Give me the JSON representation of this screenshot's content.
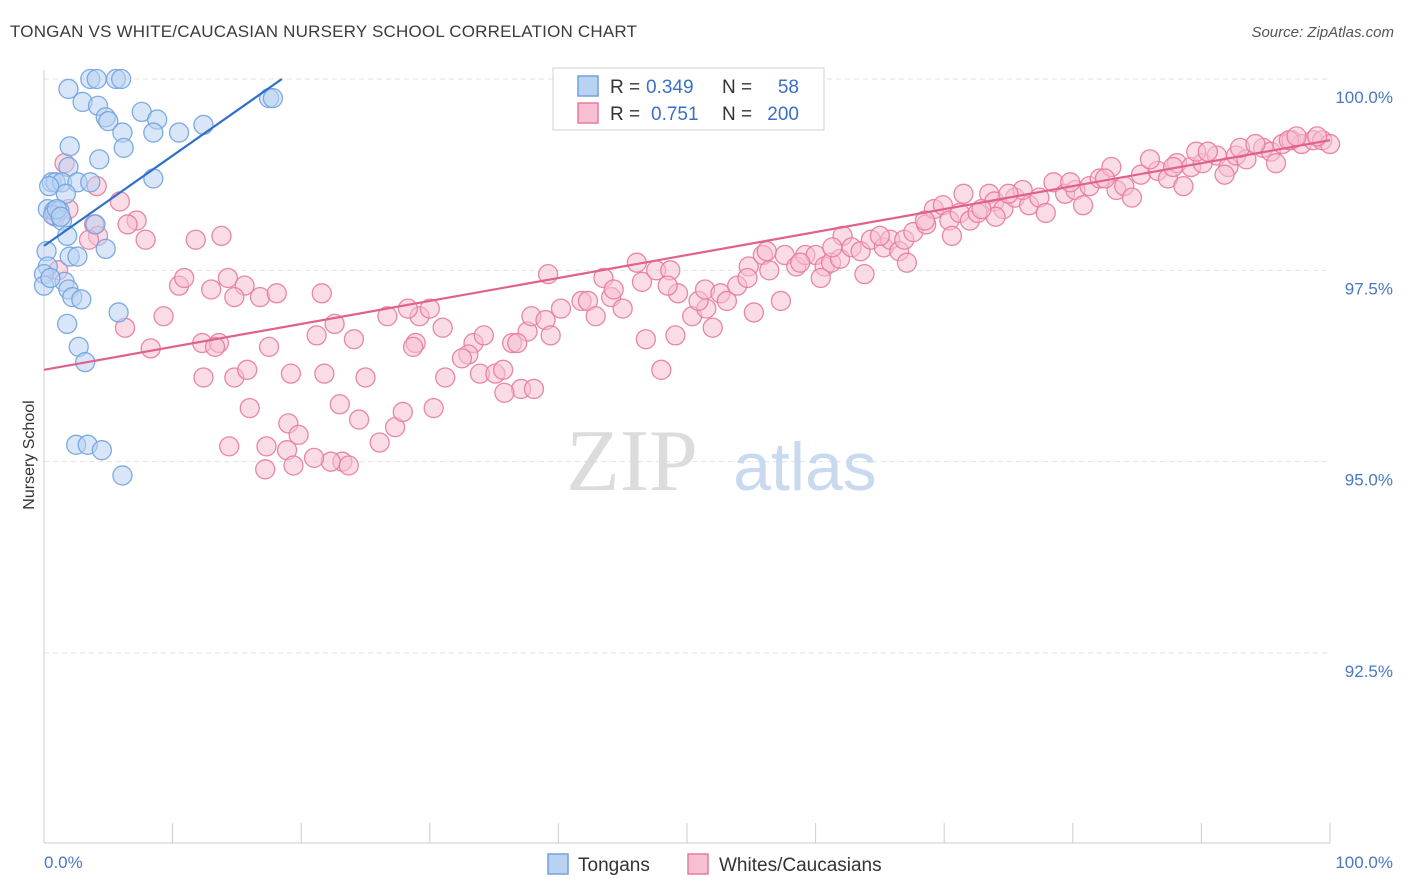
{
  "title": "TONGAN VS WHITE/CAUCASIAN NURSERY SCHOOL CORRELATION CHART",
  "source": "Source: ZipAtlas.com",
  "watermark": {
    "zip": "ZIP",
    "atlas": "atlas"
  },
  "colors": {
    "blue": "#6fa3e0",
    "blue_fill": "#b9d2f2",
    "blue_line": "#2f6fcc",
    "pink": "#e87aa0",
    "pink_fill": "#f6c0d2",
    "pink_line": "#e0618e",
    "tick_text": "#4a78c2",
    "grid": "#e2e2e2"
  },
  "legend": {
    "tongans": {
      "r_label": "R =",
      "r_value": "0.349",
      "n_label": "N =",
      "n_value": "58"
    },
    "whites": {
      "r_label": "R =",
      "r_value": "0.751",
      "n_label": "N =",
      "n_value": "200"
    }
  },
  "bottom_legend": {
    "tongans": "Tongans",
    "whites": "Whites/Caucasians"
  },
  "chart_data": {
    "type": "scatter",
    "ylabel": "Nursery School",
    "xlim": [
      0,
      100
    ],
    "ylim": [
      90.5,
      100.4
    ],
    "x_tick_labels": {
      "left": "0.0%",
      "right": "100.0%"
    },
    "y_ticks": [
      {
        "value": 100.0,
        "label": "100.0%"
      },
      {
        "value": 97.5,
        "label": "97.5%"
      },
      {
        "value": 95.0,
        "label": "95.0%"
      },
      {
        "value": 92.5,
        "label": "92.5%"
      }
    ],
    "series": [
      {
        "name": "Tongans",
        "r": 0.349,
        "n": 58,
        "trend": [
          [
            0,
            97.82
          ],
          [
            18.5,
            100.0
          ]
        ],
        "points": [
          [
            3.6,
            100
          ],
          [
            4.1,
            100
          ],
          [
            5.6,
            100
          ],
          [
            6.0,
            100
          ],
          [
            1.9,
            99.87
          ],
          [
            3.0,
            99.7
          ],
          [
            4.2,
            99.65
          ],
          [
            17.5,
            99.75
          ],
          [
            17.8,
            99.75
          ],
          [
            7.6,
            99.57
          ],
          [
            4.8,
            99.5
          ],
          [
            5.0,
            99.45
          ],
          [
            8.8,
            99.47
          ],
          [
            12.4,
            99.4
          ],
          [
            6.1,
            99.3
          ],
          [
            8.5,
            99.3
          ],
          [
            10.5,
            99.3
          ],
          [
            2.0,
            99.12
          ],
          [
            6.2,
            99.1
          ],
          [
            4.3,
            98.95
          ],
          [
            1.9,
            98.85
          ],
          [
            0.6,
            98.65
          ],
          [
            0.9,
            98.65
          ],
          [
            1.4,
            98.65
          ],
          [
            2.6,
            98.65
          ],
          [
            3.6,
            98.65
          ],
          [
            8.5,
            98.7
          ],
          [
            1.7,
            98.5
          ],
          [
            0.3,
            98.3
          ],
          [
            0.8,
            98.28
          ],
          [
            1.2,
            98.28
          ],
          [
            0.7,
            98.22
          ],
          [
            1.4,
            98.15
          ],
          [
            4.0,
            98.1
          ],
          [
            1.8,
            97.95
          ],
          [
            4.8,
            97.78
          ],
          [
            0.2,
            97.75
          ],
          [
            0.3,
            97.55
          ],
          [
            2.0,
            97.68
          ],
          [
            2.6,
            97.68
          ],
          [
            0.0,
            97.45
          ],
          [
            1.6,
            97.35
          ],
          [
            1.9,
            97.25
          ],
          [
            2.2,
            97.15
          ],
          [
            2.9,
            97.12
          ],
          [
            5.8,
            96.95
          ],
          [
            1.8,
            96.8
          ],
          [
            2.7,
            96.5
          ],
          [
            3.2,
            96.3
          ],
          [
            2.5,
            95.22
          ],
          [
            3.4,
            95.22
          ],
          [
            4.5,
            95.15
          ],
          [
            6.1,
            94.82
          ],
          [
            0.0,
            97.3
          ],
          [
            0.5,
            97.4
          ],
          [
            1.0,
            98.3
          ],
          [
            1.3,
            98.2
          ],
          [
            0.4,
            98.6
          ]
        ]
      },
      {
        "name": "Whites/Caucasians",
        "r": 0.751,
        "n": 200,
        "trend": [
          [
            0,
            96.2
          ],
          [
            100,
            99.2
          ]
        ],
        "points": [
          [
            1.6,
            98.9
          ],
          [
            4.1,
            98.6
          ],
          [
            5.9,
            98.4
          ],
          [
            1.9,
            98.3
          ],
          [
            0.9,
            98.2
          ],
          [
            3.9,
            98.1
          ],
          [
            7.2,
            98.15
          ],
          [
            6.5,
            98.1
          ],
          [
            4.2,
            97.95
          ],
          [
            3.5,
            97.9
          ],
          [
            7.9,
            97.9
          ],
          [
            11.8,
            97.9
          ],
          [
            1.1,
            97.5
          ],
          [
            10.5,
            97.3
          ],
          [
            10.9,
            97.4
          ],
          [
            14.3,
            97.4
          ],
          [
            15.6,
            97.3
          ],
          [
            14.8,
            97.15
          ],
          [
            16.8,
            97.15
          ],
          [
            18.1,
            97.2
          ],
          [
            21.6,
            97.2
          ],
          [
            9.3,
            96.9
          ],
          [
            6.3,
            96.75
          ],
          [
            12.3,
            96.55
          ],
          [
            13.6,
            96.55
          ],
          [
            8.3,
            96.48
          ],
          [
            13.3,
            96.5
          ],
          [
            17.5,
            96.5
          ],
          [
            22.6,
            96.8
          ],
          [
            21.2,
            96.65
          ],
          [
            24.1,
            96.6
          ],
          [
            26.7,
            96.9
          ],
          [
            28.9,
            96.55
          ],
          [
            29.2,
            96.9
          ],
          [
            28.3,
            97.0
          ],
          [
            30.0,
            97.0
          ],
          [
            28.7,
            96.5
          ],
          [
            31.0,
            96.75
          ],
          [
            33.4,
            96.55
          ],
          [
            33.0,
            96.4
          ],
          [
            34.2,
            96.65
          ],
          [
            33.9,
            96.15
          ],
          [
            35.1,
            96.15
          ],
          [
            35.7,
            96.2
          ],
          [
            14.8,
            96.1
          ],
          [
            15.8,
            96.2
          ],
          [
            16.0,
            95.7
          ],
          [
            19.2,
            96.15
          ],
          [
            21.8,
            96.15
          ],
          [
            17.3,
            95.2
          ],
          [
            19.0,
            95.5
          ],
          [
            19.8,
            95.35
          ],
          [
            23.0,
            95.75
          ],
          [
            23.2,
            95.0
          ],
          [
            24.5,
            95.55
          ],
          [
            26.1,
            95.25
          ],
          [
            27.3,
            95.45
          ],
          [
            27.9,
            95.65
          ],
          [
            30.3,
            95.7
          ],
          [
            14.4,
            95.2
          ],
          [
            18.9,
            95.15
          ],
          [
            22.3,
            95.0
          ],
          [
            17.2,
            94.9
          ],
          [
            19.4,
            94.95
          ],
          [
            21.0,
            95.05
          ],
          [
            23.7,
            94.95
          ],
          [
            13.8,
            97.95
          ],
          [
            13.0,
            97.25
          ],
          [
            12.4,
            96.1
          ],
          [
            25.0,
            96.1
          ],
          [
            31.2,
            96.1
          ],
          [
            32.5,
            96.35
          ],
          [
            36.4,
            96.55
          ],
          [
            37.1,
            95.95
          ],
          [
            38.1,
            95.95
          ],
          [
            35.8,
            95.9
          ],
          [
            37.6,
            96.7
          ],
          [
            37.9,
            96.9
          ],
          [
            39.0,
            96.85
          ],
          [
            39.4,
            96.65
          ],
          [
            40.2,
            97.0
          ],
          [
            41.8,
            97.1
          ],
          [
            42.3,
            97.1
          ],
          [
            42.9,
            96.9
          ],
          [
            44.1,
            97.15
          ],
          [
            45.0,
            97.0
          ],
          [
            39.2,
            97.45
          ],
          [
            43.5,
            97.4
          ],
          [
            44.3,
            97.25
          ],
          [
            46.5,
            97.35
          ],
          [
            47.6,
            97.5
          ],
          [
            48.7,
            97.5
          ],
          [
            46.1,
            97.6
          ],
          [
            49.3,
            97.2
          ],
          [
            50.4,
            96.9
          ],
          [
            51.5,
            97.0
          ],
          [
            49.1,
            96.65
          ],
          [
            48.0,
            96.2
          ],
          [
            50.9,
            97.1
          ],
          [
            51.4,
            97.25
          ],
          [
            52.6,
            97.2
          ],
          [
            53.1,
            97.1
          ],
          [
            53.9,
            97.3
          ],
          [
            54.8,
            97.55
          ],
          [
            55.9,
            97.7
          ],
          [
            56.4,
            97.5
          ],
          [
            57.6,
            97.7
          ],
          [
            58.5,
            97.55
          ],
          [
            59.2,
            97.7
          ],
          [
            60.0,
            97.7
          ],
          [
            60.7,
            97.55
          ],
          [
            61.2,
            97.6
          ],
          [
            61.9,
            97.65
          ],
          [
            62.1,
            97.95
          ],
          [
            62.8,
            97.8
          ],
          [
            63.5,
            97.75
          ],
          [
            64.3,
            97.9
          ],
          [
            65.3,
            97.8
          ],
          [
            65.8,
            97.9
          ],
          [
            66.5,
            97.75
          ],
          [
            66.9,
            97.9
          ],
          [
            67.6,
            98.0
          ],
          [
            68.6,
            98.1
          ],
          [
            69.2,
            98.3
          ],
          [
            69.9,
            98.35
          ],
          [
            70.4,
            98.15
          ],
          [
            71.2,
            98.25
          ],
          [
            72.0,
            98.15
          ],
          [
            72.6,
            98.25
          ],
          [
            73.5,
            98.5
          ],
          [
            73.9,
            98.4
          ],
          [
            74.6,
            98.3
          ],
          [
            75.5,
            98.45
          ],
          [
            76.6,
            98.35
          ],
          [
            77.4,
            98.45
          ],
          [
            78.5,
            98.65
          ],
          [
            79.4,
            98.5
          ],
          [
            80.2,
            98.55
          ],
          [
            81.3,
            98.6
          ],
          [
            82.1,
            98.7
          ],
          [
            83.4,
            98.55
          ],
          [
            84.0,
            98.6
          ],
          [
            85.3,
            98.75
          ],
          [
            86.6,
            98.8
          ],
          [
            87.4,
            98.7
          ],
          [
            88.1,
            98.9
          ],
          [
            89.2,
            98.85
          ],
          [
            90.1,
            98.9
          ],
          [
            91.2,
            99.0
          ],
          [
            92.1,
            98.85
          ],
          [
            92.7,
            99.0
          ],
          [
            93.5,
            98.95
          ],
          [
            94.8,
            99.1
          ],
          [
            95.4,
            99.05
          ],
          [
            96.3,
            99.15
          ],
          [
            97.0,
            99.2
          ],
          [
            97.8,
            99.15
          ],
          [
            98.7,
            99.2
          ],
          [
            99.4,
            99.2
          ],
          [
            100.0,
            99.15
          ],
          [
            54.7,
            97.4
          ],
          [
            56.2,
            97.75
          ],
          [
            58.8,
            97.6
          ],
          [
            60.4,
            97.4
          ],
          [
            63.8,
            97.45
          ],
          [
            67.1,
            97.6
          ],
          [
            70.6,
            97.95
          ],
          [
            74.0,
            98.2
          ],
          [
            77.9,
            98.25
          ],
          [
            80.8,
            98.35
          ],
          [
            84.6,
            98.45
          ],
          [
            88.6,
            98.6
          ],
          [
            91.8,
            98.75
          ],
          [
            95.8,
            98.9
          ],
          [
            61.3,
            97.8
          ],
          [
            65.0,
            97.95
          ],
          [
            68.5,
            98.15
          ],
          [
            72.9,
            98.3
          ],
          [
            76.1,
            98.55
          ],
          [
            79.8,
            98.65
          ],
          [
            83.0,
            98.85
          ],
          [
            86.0,
            98.95
          ],
          [
            89.6,
            99.05
          ],
          [
            93.0,
            99.1
          ],
          [
            96.8,
            99.2
          ],
          [
            99.0,
            99.25
          ],
          [
            71.5,
            98.5
          ],
          [
            75.0,
            98.5
          ],
          [
            82.5,
            98.7
          ],
          [
            87.8,
            98.85
          ],
          [
            90.5,
            99.05
          ],
          [
            94.2,
            99.15
          ],
          [
            97.4,
            99.25
          ],
          [
            55.2,
            96.95
          ],
          [
            57.3,
            97.1
          ],
          [
            52.0,
            96.75
          ],
          [
            46.8,
            96.6
          ],
          [
            36.8,
            96.55
          ],
          [
            48.5,
            97.3
          ]
        ]
      }
    ]
  }
}
